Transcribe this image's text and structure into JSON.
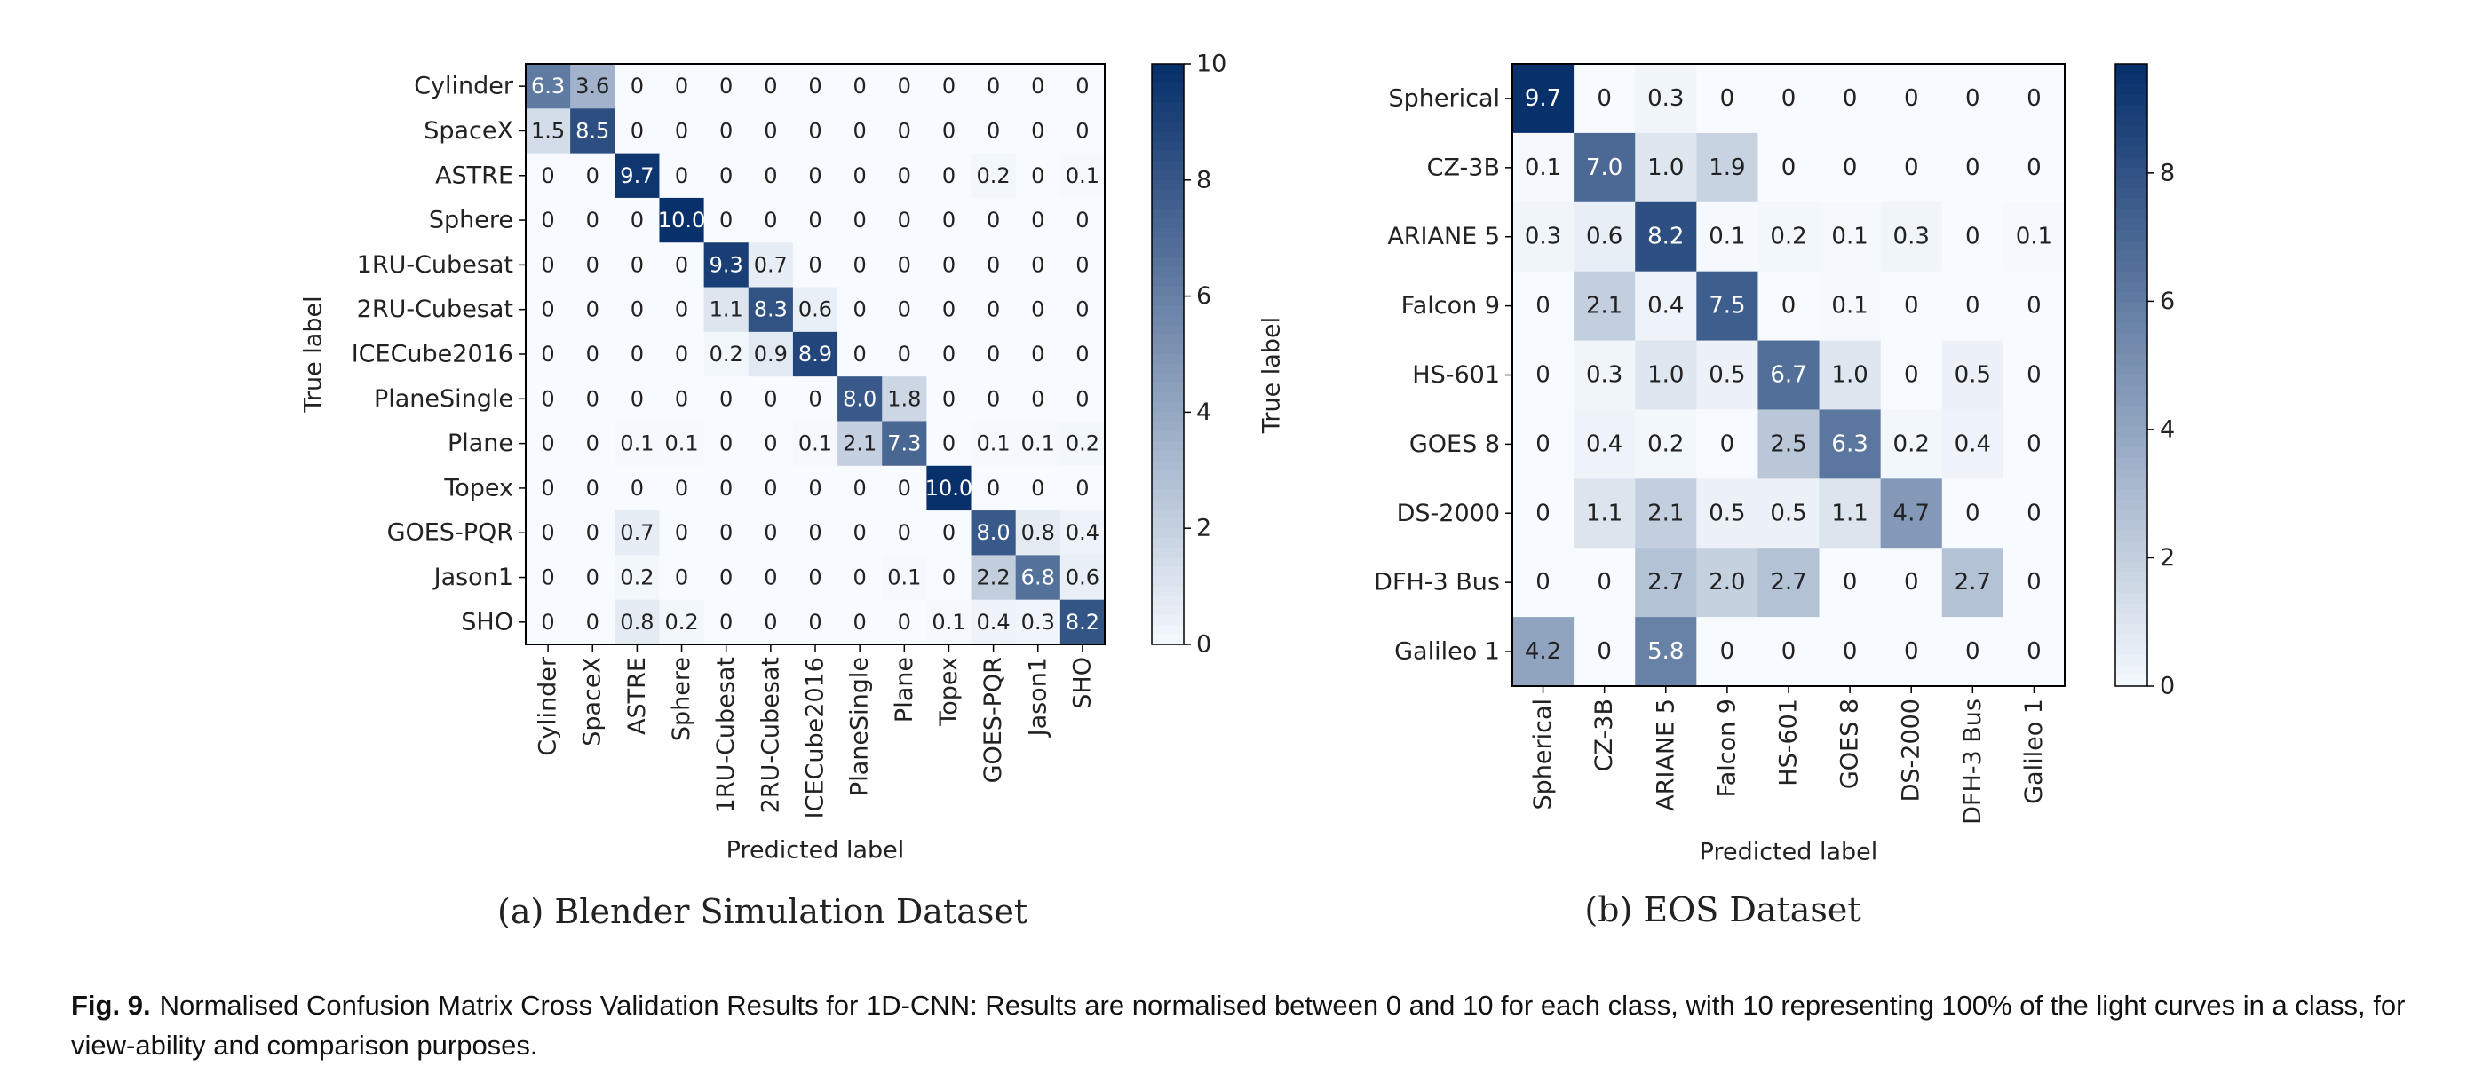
{
  "chart_data": [
    {
      "type": "heatmap",
      "title": "",
      "xlabel": "Predicted label",
      "ylabel": "True label",
      "categories": [
        "Cylinder",
        "SpaceX",
        "ASTRE",
        "Sphere",
        "1RU-Cubesat",
        "2RU-Cubesat",
        "ICECube2016",
        "PlaneSingle",
        "Plane",
        "Topex",
        "GOES-PQR",
        "Jason1",
        "SHO"
      ],
      "values": [
        [
          "6.3",
          "3.6",
          "0",
          "0",
          "0",
          "0",
          "0",
          "0",
          "0",
          "0",
          "0",
          "0",
          "0"
        ],
        [
          "1.5",
          "8.5",
          "0",
          "0",
          "0",
          "0",
          "0",
          "0",
          "0",
          "0",
          "0",
          "0",
          "0"
        ],
        [
          "0",
          "0",
          "9.7",
          "0",
          "0",
          "0",
          "0",
          "0",
          "0",
          "0",
          "0.2",
          "0",
          "0.1"
        ],
        [
          "0",
          "0",
          "0",
          "10.0",
          "0",
          "0",
          "0",
          "0",
          "0",
          "0",
          "0",
          "0",
          "0"
        ],
        [
          "0",
          "0",
          "0",
          "0",
          "9.3",
          "0.7",
          "0",
          "0",
          "0",
          "0",
          "0",
          "0",
          "0"
        ],
        [
          "0",
          "0",
          "0",
          "0",
          "1.1",
          "8.3",
          "0.6",
          "0",
          "0",
          "0",
          "0",
          "0",
          "0"
        ],
        [
          "0",
          "0",
          "0",
          "0",
          "0.2",
          "0.9",
          "8.9",
          "0",
          "0",
          "0",
          "0",
          "0",
          "0"
        ],
        [
          "0",
          "0",
          "0",
          "0",
          "0",
          "0",
          "0",
          "8.0",
          "1.8",
          "0",
          "0",
          "0",
          "0"
        ],
        [
          "0",
          "0",
          "0.1",
          "0.1",
          "0",
          "0",
          "0.1",
          "2.1",
          "7.3",
          "0",
          "0.1",
          "0.1",
          "0.2"
        ],
        [
          "0",
          "0",
          "0",
          "0",
          "0",
          "0",
          "0",
          "0",
          "0",
          "10.0",
          "0",
          "0",
          "0"
        ],
        [
          "0",
          "0",
          "0.7",
          "0",
          "0",
          "0",
          "0",
          "0",
          "0",
          "0",
          "8.0",
          "0.8",
          "0.4"
        ],
        [
          "0",
          "0",
          "0.2",
          "0",
          "0",
          "0",
          "0",
          "0",
          "0.1",
          "0",
          "2.2",
          "6.8",
          "0.6"
        ],
        [
          "0",
          "0",
          "0.8",
          "0.2",
          "0",
          "0",
          "0",
          "0",
          "0",
          "0.1",
          "0.4",
          "0.3",
          "8.2"
        ]
      ],
      "colorbar": {
        "range": [
          0,
          10
        ],
        "ticks": [
          "0",
          "2",
          "4",
          "6",
          "8",
          "10"
        ]
      },
      "colormap": [
        "#f7fbff",
        "#08306b"
      ],
      "subcaption": "(a) Blender Simulation Dataset"
    },
    {
      "type": "heatmap",
      "title": "",
      "xlabel": "Predicted label",
      "ylabel": "True label",
      "categories": [
        "Spherical",
        "CZ-3B",
        "ARIANE 5",
        "Falcon 9",
        "HS-601",
        "GOES 8",
        "DS-2000",
        "DFH-3 Bus",
        "Galileo 1"
      ],
      "values": [
        [
          "9.7",
          "0",
          "0.3",
          "0",
          "0",
          "0",
          "0",
          "0",
          "0"
        ],
        [
          "0.1",
          "7.0",
          "1.0",
          "1.9",
          "0",
          "0",
          "0",
          "0",
          "0"
        ],
        [
          "0.3",
          "0.6",
          "8.2",
          "0.1",
          "0.2",
          "0.1",
          "0.3",
          "0",
          "0.1"
        ],
        [
          "0",
          "2.1",
          "0.4",
          "7.5",
          "0",
          "0.1",
          "0",
          "0",
          "0"
        ],
        [
          "0",
          "0.3",
          "1.0",
          "0.5",
          "6.7",
          "1.0",
          "0",
          "0.5",
          "0"
        ],
        [
          "0",
          "0.4",
          "0.2",
          "0",
          "2.5",
          "6.3",
          "0.2",
          "0.4",
          "0"
        ],
        [
          "0",
          "1.1",
          "2.1",
          "0.5",
          "0.5",
          "1.1",
          "4.7",
          "0",
          "0"
        ],
        [
          "0",
          "0",
          "2.7",
          "2.0",
          "2.7",
          "0",
          "0",
          "2.7",
          "0"
        ],
        [
          "4.2",
          "0",
          "5.8",
          "0",
          "0",
          "0",
          "0",
          "0",
          "0"
        ]
      ],
      "colorbar": {
        "range": [
          0,
          9.7
        ],
        "ticks": [
          "0",
          "2",
          "4",
          "6",
          "8"
        ]
      },
      "colormap": [
        "#f7fbff",
        "#08306b"
      ],
      "subcaption": "(b) EOS Dataset"
    }
  ],
  "figure_caption": {
    "label": "Fig. 9.",
    "text": "Normalised Confusion Matrix Cross Validation Results for 1D-CNN: Results are normalised between 0 and 10 for each class, with 10 representing 100% of the light curves in a class, for view-ability and comparison purposes."
  }
}
